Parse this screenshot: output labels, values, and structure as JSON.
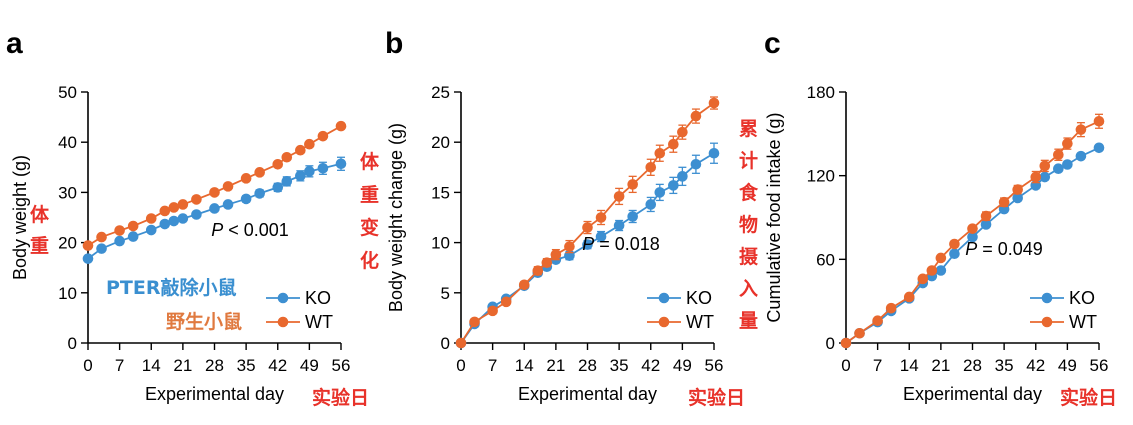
{
  "colors": {
    "ko": "#3d8fd1",
    "wt": "#e8682e",
    "annotation_red": "#e8322a",
    "annotation_blue": "#3a8fd0",
    "annotation_orange": "#e07a40"
  },
  "chart_data": [
    {
      "panel": "a",
      "type": "line",
      "ylabel": "Body weight (g)",
      "xlabel": "Experimental day",
      "x_ticks": [
        0,
        7,
        14,
        21,
        28,
        35,
        42,
        49,
        56
      ],
      "y_ticks": [
        0,
        10,
        20,
        30,
        40,
        50
      ],
      "xlim": [
        0,
        56
      ],
      "ylim": [
        0,
        50
      ],
      "p_value": "< 0.001",
      "x": [
        0,
        3,
        7,
        10,
        14,
        17,
        19,
        21,
        24,
        28,
        31,
        35,
        38,
        42,
        44,
        47,
        49,
        52,
        56
      ],
      "series": [
        {
          "name": "KO",
          "values": [
            16.8,
            18.8,
            20.3,
            21.2,
            22.5,
            23.7,
            24.3,
            24.8,
            25.6,
            26.8,
            27.6,
            28.7,
            29.8,
            31.0,
            32.2,
            33.3,
            34.2,
            34.8,
            35.7
          ],
          "err": [
            0.4,
            0.4,
            0.4,
            0.4,
            0.4,
            0.4,
            0.4,
            0.4,
            0.5,
            0.5,
            0.5,
            0.6,
            0.7,
            0.8,
            0.9,
            1.0,
            1.1,
            1.2,
            1.3
          ]
        },
        {
          "name": "WT",
          "values": [
            19.4,
            21.1,
            22.4,
            23.3,
            24.8,
            26.3,
            27.0,
            27.6,
            28.6,
            30.0,
            31.2,
            32.8,
            34.0,
            35.6,
            37.0,
            38.4,
            39.6,
            41.2,
            43.2
          ],
          "err": [
            0.3,
            0.3,
            0.3,
            0.3,
            0.3,
            0.3,
            0.3,
            0.3,
            0.3,
            0.3,
            0.3,
            0.3,
            0.3,
            0.3,
            0.3,
            0.3,
            0.3,
            0.3,
            0.4
          ]
        }
      ],
      "legend_position": "bottom-right"
    },
    {
      "panel": "b",
      "type": "line",
      "ylabel": "Body weight change (g)",
      "xlabel": "Experimental day",
      "x_ticks": [
        0,
        7,
        14,
        21,
        28,
        35,
        42,
        49,
        56
      ],
      "y_ticks": [
        0,
        5,
        10,
        15,
        20,
        25
      ],
      "xlim": [
        0,
        56
      ],
      "ylim": [
        0,
        25
      ],
      "p_value": "= 0.018",
      "x": [
        0,
        3,
        7,
        10,
        14,
        17,
        19,
        21,
        24,
        28,
        31,
        35,
        38,
        42,
        44,
        47,
        49,
        52,
        56
      ],
      "series": [
        {
          "name": "KO",
          "values": [
            0,
            1.9,
            3.6,
            4.4,
            5.7,
            7.0,
            7.6,
            8.3,
            8.7,
            9.8,
            10.6,
            11.7,
            12.6,
            13.8,
            15.0,
            15.7,
            16.6,
            17.8,
            18.9
          ],
          "err": [
            0.1,
            0.2,
            0.2,
            0.2,
            0.2,
            0.3,
            0.3,
            0.3,
            0.4,
            0.4,
            0.5,
            0.5,
            0.6,
            0.7,
            0.8,
            0.8,
            0.9,
            0.9,
            1.0
          ]
        },
        {
          "name": "WT",
          "values": [
            0,
            2.1,
            3.2,
            4.1,
            5.8,
            7.2,
            8.0,
            8.8,
            9.6,
            11.5,
            12.5,
            14.6,
            15.8,
            17.5,
            18.9,
            19.8,
            21.0,
            22.6,
            23.9
          ],
          "err": [
            0.1,
            0.2,
            0.2,
            0.2,
            0.3,
            0.4,
            0.4,
            0.5,
            0.6,
            0.6,
            0.7,
            0.8,
            0.8,
            0.8,
            0.8,
            0.8,
            0.7,
            0.7,
            0.6
          ]
        }
      ],
      "legend_position": "bottom-right"
    },
    {
      "panel": "c",
      "type": "line",
      "ylabel": "Cumulative food intake (g)",
      "xlabel": "Experimental day",
      "x_ticks": [
        0,
        7,
        14,
        21,
        28,
        35,
        42,
        49,
        56
      ],
      "y_ticks": [
        0,
        60,
        120,
        180
      ],
      "xlim": [
        0,
        56
      ],
      "ylim": [
        0,
        180
      ],
      "p_value": "= 0.049",
      "x": [
        0,
        3,
        7,
        10,
        14,
        17,
        19,
        21,
        24,
        28,
        31,
        35,
        38,
        42,
        44,
        47,
        49,
        52,
        56
      ],
      "series": [
        {
          "name": "KO",
          "values": [
            0,
            7,
            15,
            23,
            32,
            43,
            48,
            52,
            64,
            76,
            85,
            96,
            104,
            113,
            119,
            125,
            128,
            134,
            140
          ],
          "err": [
            0,
            1,
            1,
            1,
            1,
            1,
            1,
            1,
            1,
            1,
            1,
            1,
            1,
            1,
            1,
            1,
            1,
            1,
            1
          ]
        },
        {
          "name": "WT",
          "values": [
            0,
            7,
            16,
            25,
            33,
            46,
            52,
            61,
            71,
            82,
            91,
            101,
            110,
            119,
            127,
            135,
            143,
            153,
            159
          ],
          "err": [
            0,
            1,
            1,
            1,
            1,
            1,
            1,
            1,
            2,
            2,
            3,
            3,
            3,
            4,
            4,
            4,
            4,
            5,
            5
          ]
        }
      ],
      "legend_position": "bottom-right"
    }
  ],
  "panels": {
    "a": {
      "letter": "a"
    },
    "b": {
      "letter": "b"
    },
    "c": {
      "letter": "c"
    }
  },
  "annotations": {
    "a_y_cn": [
      "体",
      "重"
    ],
    "a_x_cn": "实验日",
    "a_ko_cn": "PTER敲除小鼠",
    "a_wt_cn": "野生小鼠",
    "b_y_cn": [
      "体",
      "重",
      "变",
      "化"
    ],
    "b_x_cn": "实验日",
    "c_y_cn": [
      "累",
      "计",
      "食",
      "物",
      "摄",
      "入",
      "量"
    ],
    "c_x_cn": "实验日"
  },
  "p_prefix": "P"
}
